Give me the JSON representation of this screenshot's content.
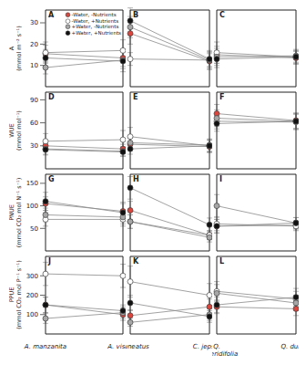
{
  "chart_data": [
    {
      "type": "line",
      "title": "A",
      "marker": "circle",
      "legend": "upper right",
      "tick_labels": "y",
      "ylabel": "A\n(mmol m⁻² s⁻¹)",
      "categories": [
        "A. manzanita",
        "A. viscida"
      ],
      "ylim": [
        0,
        36
      ],
      "yticks": [
        10,
        20,
        30
      ],
      "series": [
        {
          "name": "-Water, -Nutrients",
          "color": "#d9463e",
          "values": [
            15.5,
            13.5
          ],
          "errors": [
            4,
            4
          ]
        },
        {
          "name": "-Water, +Nutrients",
          "color": "#ffffff",
          "values": [
            16,
            17
          ],
          "errors": [
            5,
            5
          ]
        },
        {
          "name": "+Water, -Nutrients",
          "color": "#a6a6a6",
          "values": [
            9,
            12.5
          ],
          "errors": [
            3,
            4
          ]
        },
        {
          "name": "+Water, +Nutrients",
          "color": "#111111",
          "values": [
            13.5,
            12
          ],
          "errors": [
            4,
            5
          ]
        }
      ]
    },
    {
      "type": "line",
      "title": "B",
      "marker": "circle",
      "tick_labels": false,
      "categories": [
        "C. cuneatus",
        "C. jepsonii"
      ],
      "ylim": [
        0,
        36
      ],
      "yticks": [
        10,
        20,
        30
      ],
      "series": [
        {
          "name": "-Water, -Nutrients",
          "color": "#d9463e",
          "values": [
            25,
            12
          ],
          "errors": [
            5,
            4
          ]
        },
        {
          "name": "-Water, +Nutrients",
          "color": "#ffffff",
          "values": [
            13,
            12.5
          ],
          "errors": [
            3,
            3
          ]
        },
        {
          "name": "+Water, -Nutrients",
          "color": "#a6a6a6",
          "values": [
            28,
            12.5
          ],
          "errors": [
            5,
            4
          ]
        },
        {
          "name": "+Water, +Nutrients",
          "color": "#111111",
          "values": [
            31,
            13
          ],
          "errors": [
            6,
            4
          ]
        }
      ]
    },
    {
      "type": "line",
      "title": "C",
      "marker": "circle",
      "tick_labels": false,
      "categories": [
        "Q. berberidifolia",
        "Q. durata"
      ],
      "ylim": [
        0,
        36
      ],
      "yticks": [
        10,
        20,
        30
      ],
      "series": [
        {
          "name": "-Water, -Nutrients",
          "color": "#d9463e",
          "values": [
            15,
            13.5
          ],
          "errors": [
            4,
            3
          ]
        },
        {
          "name": "-Water, +Nutrients",
          "color": "#ffffff",
          "values": [
            16,
            14
          ],
          "errors": [
            5,
            3
          ]
        },
        {
          "name": "+Water, -Nutrients",
          "color": "#a6a6a6",
          "values": [
            14,
            14.5
          ],
          "errors": [
            4,
            3
          ]
        },
        {
          "name": "+Water, +Nutrients",
          "color": "#111111",
          "values": [
            13,
            14
          ],
          "errors": [
            4,
            3
          ]
        }
      ]
    },
    {
      "type": "line",
      "title": "D",
      "marker": "circle",
      "tick_labels": "y",
      "ylabel": "WUE\n(mmol mol⁻¹)",
      "categories": [
        "A. manzanita",
        "A. viscida"
      ],
      "ylim": [
        0,
        100
      ],
      "yticks": [
        30,
        60,
        90
      ],
      "series": [
        {
          "name": "-Water, -Nutrients",
          "color": "#d9463e",
          "values": [
            30,
            26
          ],
          "errors": [
            7,
            6
          ]
        },
        {
          "name": "-Water, +Nutrients",
          "color": "#ffffff",
          "values": [
            36,
            38
          ],
          "errors": [
            10,
            12
          ]
        },
        {
          "name": "+Water, -Nutrients",
          "color": "#a6a6a6",
          "values": [
            26,
            23
          ],
          "errors": [
            7,
            6
          ]
        },
        {
          "name": "+Water, +Nutrients",
          "color": "#111111",
          "values": [
            25,
            22
          ],
          "errors": [
            7,
            6
          ]
        }
      ]
    },
    {
      "type": "line",
      "title": "E",
      "marker": "circle",
      "tick_labels": false,
      "categories": [
        "C. cuneatus",
        "C. jepsonii"
      ],
      "ylim": [
        0,
        100
      ],
      "yticks": [
        30,
        60,
        90
      ],
      "series": [
        {
          "name": "-Water, -Nutrients",
          "color": "#d9463e",
          "values": [
            32,
            29
          ],
          "errors": [
            8,
            8
          ]
        },
        {
          "name": "-Water, +Nutrients",
          "color": "#ffffff",
          "values": [
            42,
            30
          ],
          "errors": [
            12,
            8
          ]
        },
        {
          "name": "+Water, -Nutrients",
          "color": "#a6a6a6",
          "values": [
            34,
            31
          ],
          "errors": [
            9,
            8
          ]
        },
        {
          "name": "+Water, +Nutrients",
          "color": "#111111",
          "values": [
            26,
            30
          ],
          "errors": [
            7,
            8
          ]
        }
      ]
    },
    {
      "type": "line",
      "title": "F",
      "marker": "circle",
      "tick_labels": false,
      "categories": [
        "Q. berberidifolia",
        "Q. durata"
      ],
      "ylim": [
        0,
        100
      ],
      "yticks": [
        30,
        60,
        90
      ],
      "series": [
        {
          "name": "-Water, -Nutrients",
          "color": "#d9463e",
          "values": [
            72,
            63
          ],
          "errors": [
            12,
            10
          ]
        },
        {
          "name": "-Water, +Nutrients",
          "color": "#ffffff",
          "values": [
            62,
            61
          ],
          "errors": [
            10,
            10
          ]
        },
        {
          "name": "+Water, -Nutrients",
          "color": "#a6a6a6",
          "values": [
            66,
            62
          ],
          "errors": [
            11,
            10
          ]
        },
        {
          "name": "+Water, +Nutrients",
          "color": "#111111",
          "values": [
            59,
            62
          ],
          "errors": [
            10,
            10
          ]
        }
      ]
    },
    {
      "type": "line",
      "title": "G",
      "marker": "circle",
      "tick_labels": "y",
      "ylabel": "PNUE\n(mmol CO₂ mol N⁻¹ s⁻¹)",
      "categories": [
        "A. manzanita",
        "A. viscida"
      ],
      "ylim": [
        0,
        170
      ],
      "yticks": [
        50,
        100,
        150
      ],
      "series": [
        {
          "name": "-Water, -Nutrients",
          "color": "#d9463e",
          "values": [
            105,
            88
          ],
          "errors": [
            15,
            20
          ]
        },
        {
          "name": "-Water, +Nutrients",
          "color": "#ffffff",
          "values": [
            70,
            70
          ],
          "errors": [
            15,
            15
          ]
        },
        {
          "name": "+Water, -Nutrients",
          "color": "#a6a6a6",
          "values": [
            80,
            75
          ],
          "errors": [
            15,
            15
          ]
        },
        {
          "name": "+Water, +Nutrients",
          "color": "#111111",
          "values": [
            110,
            85
          ],
          "errors": [
            20,
            20
          ]
        }
      ]
    },
    {
      "type": "line",
      "title": "H",
      "marker": "circle",
      "tick_labels": false,
      "categories": [
        "C. cuneatus",
        "C. jepsonii"
      ],
      "ylim": [
        0,
        170
      ],
      "yticks": [
        50,
        100,
        150
      ],
      "series": [
        {
          "name": "-Water, -Nutrients",
          "color": "#d9463e",
          "values": [
            90,
            35
          ],
          "errors": [
            20,
            10
          ]
        },
        {
          "name": "-Water, +Nutrients",
          "color": "#ffffff",
          "values": [
            65,
            35
          ],
          "errors": [
            15,
            10
          ]
        },
        {
          "name": "+Water, -Nutrients",
          "color": "#a6a6a6",
          "values": [
            65,
            30
          ],
          "errors": [
            15,
            10
          ]
        },
        {
          "name": "+Water, +Nutrients",
          "color": "#111111",
          "values": [
            140,
            58
          ],
          "errors": [
            25,
            15
          ]
        }
      ]
    },
    {
      "type": "line",
      "title": "I",
      "marker": "circle",
      "tick_labels": false,
      "categories": [
        "Q. berberidifolia",
        "Q. durata"
      ],
      "ylim": [
        0,
        170
      ],
      "yticks": [
        50,
        100,
        150
      ],
      "series": [
        {
          "name": "-Water, -Nutrients",
          "color": "#d9463e",
          "values": [
            55,
            57
          ],
          "errors": [
            15,
            10
          ]
        },
        {
          "name": "-Water, +Nutrients",
          "color": "#ffffff",
          "values": [
            60,
            55
          ],
          "errors": [
            15,
            10
          ]
        },
        {
          "name": "+Water, -Nutrients",
          "color": "#a6a6a6",
          "values": [
            100,
            62
          ],
          "errors": [
            25,
            12
          ]
        },
        {
          "name": "+Water, +Nutrients",
          "color": "#111111",
          "values": [
            55,
            62
          ],
          "errors": [
            15,
            12
          ]
        }
      ]
    },
    {
      "type": "line",
      "title": "J",
      "marker": "circle",
      "ylabel": "PPUE\n(mmol CO₂ mol P⁻¹ s⁻¹)",
      "categories": [
        "A. manzanita",
        "A. viscida"
      ],
      "ylim": [
        0,
        400
      ],
      "yticks": [
        100,
        200,
        300
      ],
      "series": [
        {
          "name": "-Water, -Nutrients",
          "color": "#d9463e",
          "values": [
            150,
            100
          ],
          "errors": [
            40,
            30
          ]
        },
        {
          "name": "-Water, +Nutrients",
          "color": "#ffffff",
          "values": [
            310,
            300
          ],
          "errors": [
            60,
            60
          ]
        },
        {
          "name": "+Water, -Nutrients",
          "color": "#a6a6a6",
          "values": [
            80,
            110
          ],
          "errors": [
            25,
            30
          ]
        },
        {
          "name": "+Water, +Nutrients",
          "color": "#111111",
          "values": [
            150,
            120
          ],
          "errors": [
            40,
            30
          ]
        }
      ]
    },
    {
      "type": "line",
      "title": "K",
      "marker": "circle",
      "tick_labels": "x",
      "categories": [
        "C. cuneatus",
        "C. jepsonii"
      ],
      "ylim": [
        0,
        400
      ],
      "yticks": [
        100,
        200,
        300
      ],
      "series": [
        {
          "name": "-Water, -Nutrients",
          "color": "#d9463e",
          "values": [
            95,
            140
          ],
          "errors": [
            30,
            40
          ]
        },
        {
          "name": "-Water, +Nutrients",
          "color": "#ffffff",
          "values": [
            270,
            200
          ],
          "errors": [
            80,
            60
          ]
        },
        {
          "name": "+Water, -Nutrients",
          "color": "#a6a6a6",
          "values": [
            60,
            100
          ],
          "errors": [
            20,
            30
          ]
        },
        {
          "name": "+Water, +Nutrients",
          "color": "#111111",
          "values": [
            160,
            90
          ],
          "errors": [
            40,
            30
          ]
        }
      ]
    },
    {
      "type": "line",
      "title": "L",
      "marker": "circle",
      "tick_labels": "x",
      "categories": [
        "Q. berberidifolia",
        "Q. durata"
      ],
      "ylim": [
        0,
        400
      ],
      "yticks": [
        100,
        200,
        300
      ],
      "series": [
        {
          "name": "-Water, -Nutrients",
          "color": "#d9463e",
          "values": [
            140,
            130
          ],
          "errors": [
            35,
            35
          ]
        },
        {
          "name": "-Water, +Nutrients",
          "color": "#ffffff",
          "values": [
            220,
            180
          ],
          "errors": [
            50,
            40
          ]
        },
        {
          "name": "+Water, -Nutrients",
          "color": "#a6a6a6",
          "values": [
            210,
            160
          ],
          "errors": [
            45,
            40
          ]
        },
        {
          "name": "+Water, +Nutrients",
          "color": "#111111",
          "values": [
            150,
            190
          ],
          "errors": [
            40,
            45
          ]
        }
      ]
    }
  ]
}
